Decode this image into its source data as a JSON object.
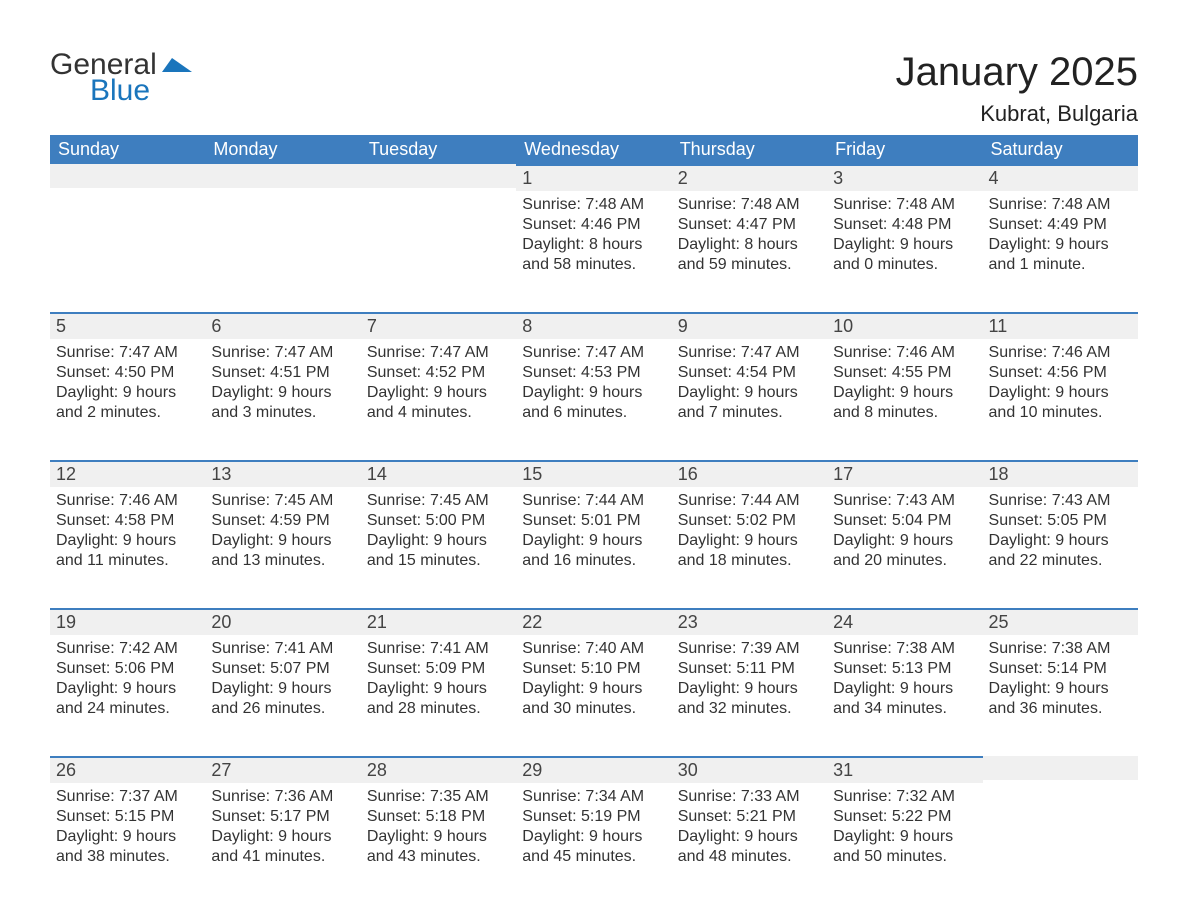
{
  "logo": {
    "general": "General",
    "blue": "Blue",
    "mark_color": "#1a75bc"
  },
  "title": {
    "month": "January 2025",
    "location": "Kubrat, Bulgaria"
  },
  "colors": {
    "header_bg": "#3e7ebf",
    "header_text": "#ffffff",
    "daynum_bg": "#f0f0f0",
    "border": "#3e7ebf",
    "body_text": "#333333"
  },
  "layout": {
    "cols": 7,
    "rows": 5,
    "first_weekday": 3
  },
  "weekdays": [
    "Sunday",
    "Monday",
    "Tuesday",
    "Wednesday",
    "Thursday",
    "Friday",
    "Saturday"
  ],
  "days": [
    {
      "n": 1,
      "sunrise": "7:48 AM",
      "sunset": "4:46 PM",
      "daylight": "8 hours and 58 minutes."
    },
    {
      "n": 2,
      "sunrise": "7:48 AM",
      "sunset": "4:47 PM",
      "daylight": "8 hours and 59 minutes."
    },
    {
      "n": 3,
      "sunrise": "7:48 AM",
      "sunset": "4:48 PM",
      "daylight": "9 hours and 0 minutes."
    },
    {
      "n": 4,
      "sunrise": "7:48 AM",
      "sunset": "4:49 PM",
      "daylight": "9 hours and 1 minute."
    },
    {
      "n": 5,
      "sunrise": "7:47 AM",
      "sunset": "4:50 PM",
      "daylight": "9 hours and 2 minutes."
    },
    {
      "n": 6,
      "sunrise": "7:47 AM",
      "sunset": "4:51 PM",
      "daylight": "9 hours and 3 minutes."
    },
    {
      "n": 7,
      "sunrise": "7:47 AM",
      "sunset": "4:52 PM",
      "daylight": "9 hours and 4 minutes."
    },
    {
      "n": 8,
      "sunrise": "7:47 AM",
      "sunset": "4:53 PM",
      "daylight": "9 hours and 6 minutes."
    },
    {
      "n": 9,
      "sunrise": "7:47 AM",
      "sunset": "4:54 PM",
      "daylight": "9 hours and 7 minutes."
    },
    {
      "n": 10,
      "sunrise": "7:46 AM",
      "sunset": "4:55 PM",
      "daylight": "9 hours and 8 minutes."
    },
    {
      "n": 11,
      "sunrise": "7:46 AM",
      "sunset": "4:56 PM",
      "daylight": "9 hours and 10 minutes."
    },
    {
      "n": 12,
      "sunrise": "7:46 AM",
      "sunset": "4:58 PM",
      "daylight": "9 hours and 11 minutes."
    },
    {
      "n": 13,
      "sunrise": "7:45 AM",
      "sunset": "4:59 PM",
      "daylight": "9 hours and 13 minutes."
    },
    {
      "n": 14,
      "sunrise": "7:45 AM",
      "sunset": "5:00 PM",
      "daylight": "9 hours and 15 minutes."
    },
    {
      "n": 15,
      "sunrise": "7:44 AM",
      "sunset": "5:01 PM",
      "daylight": "9 hours and 16 minutes."
    },
    {
      "n": 16,
      "sunrise": "7:44 AM",
      "sunset": "5:02 PM",
      "daylight": "9 hours and 18 minutes."
    },
    {
      "n": 17,
      "sunrise": "7:43 AM",
      "sunset": "5:04 PM",
      "daylight": "9 hours and 20 minutes."
    },
    {
      "n": 18,
      "sunrise": "7:43 AM",
      "sunset": "5:05 PM",
      "daylight": "9 hours and 22 minutes."
    },
    {
      "n": 19,
      "sunrise": "7:42 AM",
      "sunset": "5:06 PM",
      "daylight": "9 hours and 24 minutes."
    },
    {
      "n": 20,
      "sunrise": "7:41 AM",
      "sunset": "5:07 PM",
      "daylight": "9 hours and 26 minutes."
    },
    {
      "n": 21,
      "sunrise": "7:41 AM",
      "sunset": "5:09 PM",
      "daylight": "9 hours and 28 minutes."
    },
    {
      "n": 22,
      "sunrise": "7:40 AM",
      "sunset": "5:10 PM",
      "daylight": "9 hours and 30 minutes."
    },
    {
      "n": 23,
      "sunrise": "7:39 AM",
      "sunset": "5:11 PM",
      "daylight": "9 hours and 32 minutes."
    },
    {
      "n": 24,
      "sunrise": "7:38 AM",
      "sunset": "5:13 PM",
      "daylight": "9 hours and 34 minutes."
    },
    {
      "n": 25,
      "sunrise": "7:38 AM",
      "sunset": "5:14 PM",
      "daylight": "9 hours and 36 minutes."
    },
    {
      "n": 26,
      "sunrise": "7:37 AM",
      "sunset": "5:15 PM",
      "daylight": "9 hours and 38 minutes."
    },
    {
      "n": 27,
      "sunrise": "7:36 AM",
      "sunset": "5:17 PM",
      "daylight": "9 hours and 41 minutes."
    },
    {
      "n": 28,
      "sunrise": "7:35 AM",
      "sunset": "5:18 PM",
      "daylight": "9 hours and 43 minutes."
    },
    {
      "n": 29,
      "sunrise": "7:34 AM",
      "sunset": "5:19 PM",
      "daylight": "9 hours and 45 minutes."
    },
    {
      "n": 30,
      "sunrise": "7:33 AM",
      "sunset": "5:21 PM",
      "daylight": "9 hours and 48 minutes."
    },
    {
      "n": 31,
      "sunrise": "7:32 AM",
      "sunset": "5:22 PM",
      "daylight": "9 hours and 50 minutes."
    }
  ],
  "labels": {
    "sunrise": "Sunrise:",
    "sunset": "Sunset:",
    "daylight": "Daylight:"
  }
}
